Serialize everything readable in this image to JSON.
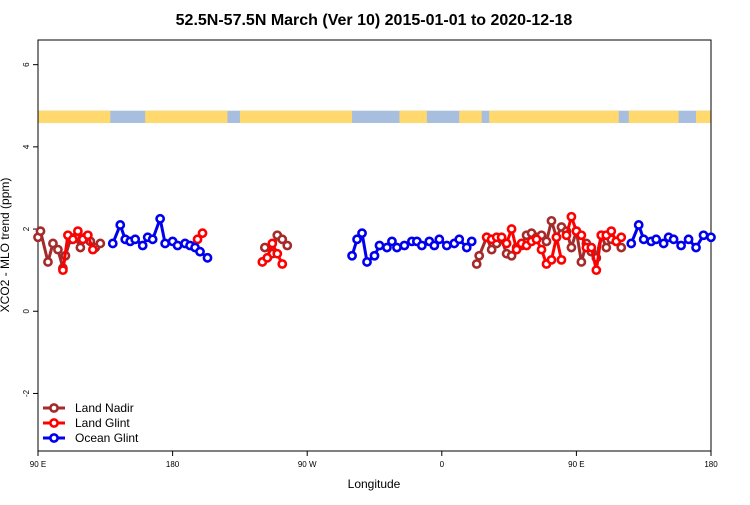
{
  "chart_data": {
    "type": "line",
    "title": "52.5N-57.5N March (Ver 10)   2015-01-01 to 2020-12-18",
    "xlabel": "Longitude",
    "ylabel": "XCO2 - MLO trend (ppm)",
    "xlim": [
      -90,
      180
    ],
    "ylim": [
      -3.4,
      6.6
    ],
    "x_ticks": [
      {
        "value": -90,
        "label": "90 E"
      },
      {
        "value": -36,
        "label": "180"
      },
      {
        "value": 18,
        "label": "90 W"
      },
      {
        "value": 72,
        "label": "0"
      },
      {
        "value": 126,
        "label": "90 E"
      },
      {
        "value": 180,
        "label": "180"
      }
    ],
    "y_ticks": [
      {
        "value": -2,
        "label": "-2"
      },
      {
        "value": 0,
        "label": "0"
      },
      {
        "value": 2,
        "label": "2"
      },
      {
        "value": 4,
        "label": "4"
      },
      {
        "value": 6,
        "label": "6"
      }
    ],
    "land_sea_strip": {
      "y_range": [
        4.58,
        4.88
      ],
      "land_color": "#FFD86E",
      "ocean_color": "#A8BEDF",
      "land_segments": [
        [
          -90,
          -61
        ],
        [
          -47,
          -14
        ],
        [
          -9,
          7
        ],
        [
          6,
          36
        ],
        [
          55,
          66
        ],
        [
          79,
          88
        ],
        [
          91,
          143
        ],
        [
          147,
          167
        ],
        [
          174,
          180
        ]
      ]
    },
    "legend": {
      "position": "bottom-left"
    },
    "series": [
      {
        "name": "Land Nadir",
        "color": "#A52A2A",
        "segments": [
          [
            [
              -90,
              1.8
            ],
            [
              -89,
              1.95
            ],
            [
              -86,
              1.2
            ],
            [
              -84,
              1.65
            ],
            [
              -82,
              1.5
            ],
            [
              -80,
              1.05
            ],
            [
              -79,
              1.35
            ],
            [
              -77,
              1.75
            ],
            [
              -75,
              1.8
            ],
            [
              -73,
              1.55
            ],
            [
              -71,
              1.8
            ],
            [
              -69,
              1.7
            ],
            [
              -67,
              1.55
            ],
            [
              -65,
              1.65
            ]
          ],
          [
            [
              1,
              1.55
            ],
            [
              4,
              1.4
            ],
            [
              6,
              1.85
            ],
            [
              8,
              1.75
            ],
            [
              10,
              1.6
            ]
          ],
          [
            [
              86,
              1.15
            ],
            [
              87,
              1.35
            ],
            [
              90,
              1.8
            ],
            [
              92,
              1.5
            ],
            [
              94,
              1.65
            ],
            [
              96,
              1.75
            ],
            [
              98,
              1.4
            ],
            [
              100,
              1.35
            ],
            [
              102,
              1.55
            ],
            [
              104,
              1.6
            ],
            [
              106,
              1.85
            ],
            [
              108,
              1.9
            ],
            [
              110,
              1.8
            ],
            [
              112,
              1.85
            ],
            [
              114,
              1.7
            ],
            [
              116,
              2.2
            ],
            [
              118,
              1.8
            ],
            [
              120,
              2.05
            ],
            [
              122,
              1.95
            ],
            [
              124,
              1.55
            ],
            [
              126,
              1.95
            ],
            [
              128,
              1.2
            ],
            [
              130,
              1.65
            ],
            [
              132,
              1.45
            ],
            [
              134,
              1.3
            ],
            [
              136,
              1.85
            ],
            [
              138,
              1.55
            ],
            [
              140,
              1.75
            ],
            [
              142,
              1.7
            ],
            [
              144,
              1.55
            ]
          ]
        ]
      },
      {
        "name": "Land Glint",
        "color": "#FF0000",
        "segments": [
          [
            [
              -80,
              1.0
            ],
            [
              -78,
              1.85
            ],
            [
              -76,
              1.75
            ],
            [
              -74,
              1.95
            ],
            [
              -72,
              1.75
            ],
            [
              -70,
              1.85
            ],
            [
              -68,
              1.5
            ]
          ],
          [
            [
              -26,
              1.75
            ],
            [
              -24,
              1.9
            ]
          ],
          [
            [
              0,
              1.2
            ],
            [
              2,
              1.3
            ],
            [
              4,
              1.65
            ],
            [
              6,
              1.4
            ],
            [
              8,
              1.15
            ]
          ],
          [
            [
              90,
              1.8
            ],
            [
              92,
              1.75
            ],
            [
              94,
              1.8
            ],
            [
              96,
              1.8
            ],
            [
              98,
              1.65
            ],
            [
              100,
              2.0
            ],
            [
              102,
              1.5
            ],
            [
              104,
              1.65
            ],
            [
              106,
              1.6
            ],
            [
              108,
              1.7
            ],
            [
              110,
              1.75
            ],
            [
              112,
              1.5
            ],
            [
              114,
              1.15
            ],
            [
              116,
              1.25
            ],
            [
              118,
              1.8
            ],
            [
              120,
              1.25
            ]
          ],
          [
            [
              122,
              1.85
            ],
            [
              124,
              2.3
            ],
            [
              126,
              1.95
            ],
            [
              128,
              1.85
            ],
            [
              130,
              1.55
            ],
            [
              132,
              1.55
            ],
            [
              134,
              1.0
            ],
            [
              136,
              1.85
            ],
            [
              138,
              1.85
            ],
            [
              140,
              1.95
            ],
            [
              142,
              1.7
            ],
            [
              144,
              1.8
            ]
          ]
        ]
      },
      {
        "name": "Ocean Glint",
        "color": "#0000EE",
        "segments": [
          [
            [
              -60,
              1.65
            ],
            [
              -57,
              2.1
            ],
            [
              -55,
              1.75
            ],
            [
              -53,
              1.7
            ],
            [
              -51,
              1.75
            ],
            [
              -48,
              1.6
            ],
            [
              -46,
              1.8
            ],
            [
              -44,
              1.75
            ],
            [
              -41,
              2.25
            ],
            [
              -39,
              1.65
            ],
            [
              -36,
              1.7
            ],
            [
              -34,
              1.6
            ],
            [
              -31,
              1.65
            ],
            [
              -29,
              1.6
            ],
            [
              -27,
              1.55
            ],
            [
              -25,
              1.45
            ],
            [
              -22,
              1.3
            ]
          ],
          [
            [
              36,
              1.35
            ],
            [
              38,
              1.75
            ],
            [
              40,
              1.9
            ],
            [
              42,
              1.2
            ],
            [
              45,
              1.35
            ],
            [
              47,
              1.6
            ],
            [
              50,
              1.55
            ],
            [
              52,
              1.7
            ],
            [
              54,
              1.55
            ],
            [
              57,
              1.6
            ],
            [
              60,
              1.7
            ],
            [
              62,
              1.7
            ],
            [
              64,
              1.6
            ],
            [
              67,
              1.7
            ],
            [
              69,
              1.6
            ],
            [
              71,
              1.75
            ],
            [
              74,
              1.6
            ],
            [
              77,
              1.65
            ],
            [
              79,
              1.75
            ],
            [
              82,
              1.55
            ],
            [
              84,
              1.7
            ]
          ],
          [
            [
              148,
              1.65
            ],
            [
              151,
              2.1
            ],
            [
              153,
              1.75
            ],
            [
              156,
              1.7
            ],
            [
              158,
              1.75
            ],
            [
              161,
              1.65
            ],
            [
              163,
              1.8
            ],
            [
              165,
              1.75
            ],
            [
              168,
              1.6
            ],
            [
              171,
              1.75
            ],
            [
              174,
              1.55
            ],
            [
              177,
              1.85
            ],
            [
              180,
              1.8
            ]
          ]
        ]
      }
    ]
  }
}
